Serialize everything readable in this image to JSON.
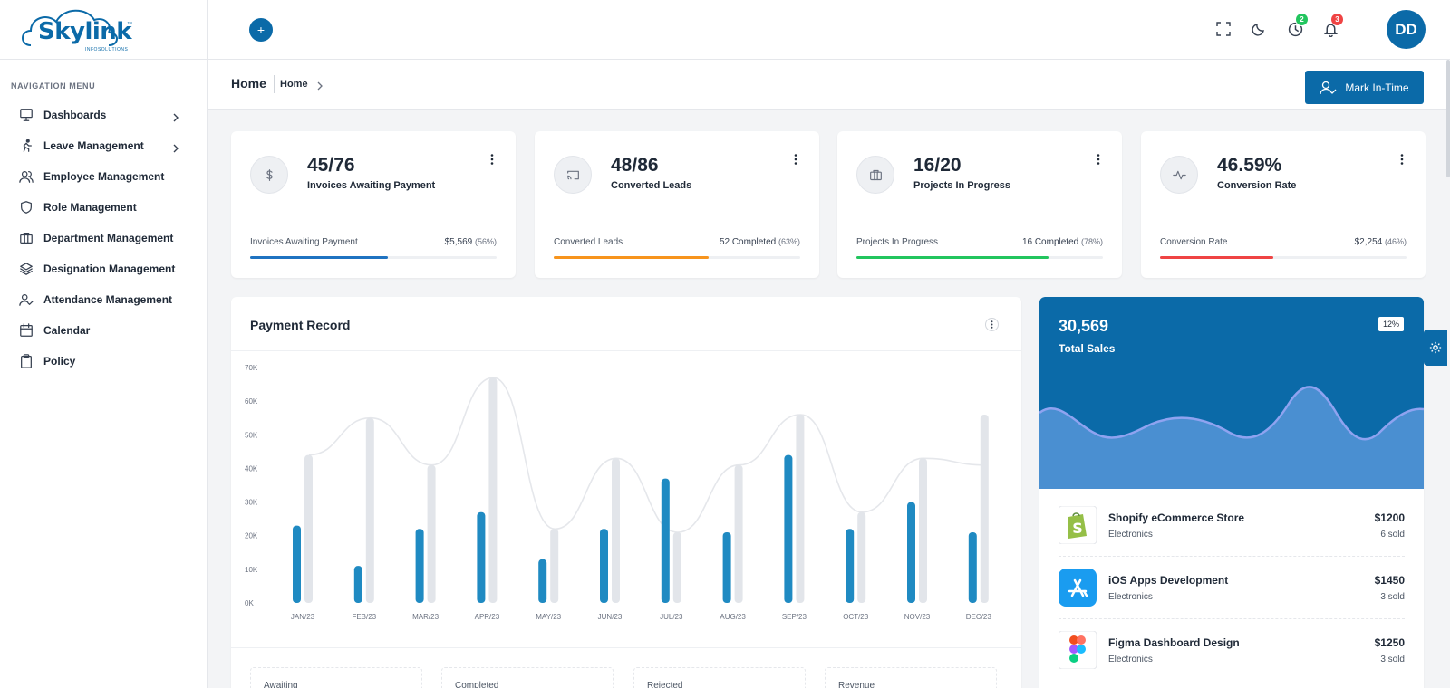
{
  "brand": {
    "name": "Skylink",
    "sub": "INFOSOLUTIONS",
    "tm": "™"
  },
  "sidebar": {
    "title": "NAVIGATION MENU",
    "items": [
      {
        "label": "Dashboards",
        "icon": "monitor-icon",
        "has_children": true
      },
      {
        "label": "Leave Management",
        "icon": "runner-icon",
        "has_children": true
      },
      {
        "label": "Employee Management",
        "icon": "users-icon",
        "has_children": false
      },
      {
        "label": "Role Management",
        "icon": "shield-icon",
        "has_children": false
      },
      {
        "label": "Department Management",
        "icon": "briefcase-icon",
        "has_children": false
      },
      {
        "label": "Designation Management",
        "icon": "layers-icon",
        "has_children": false
      },
      {
        "label": "Attendance Management",
        "icon": "user-check-icon",
        "has_children": false
      },
      {
        "label": "Calendar",
        "icon": "calendar-icon",
        "has_children": false
      },
      {
        "label": "Policy",
        "icon": "clipboard-icon",
        "has_children": false
      }
    ]
  },
  "topbar": {
    "history_badge": "2",
    "notification_badge": "3",
    "avatar_initials": "DD",
    "colors": {
      "accent": "#0b6aa8",
      "green": "#22c55e",
      "red": "#ef4444"
    }
  },
  "pagehead": {
    "title": "Home",
    "crumb": "Home",
    "button": "Mark In-Time"
  },
  "stats": [
    {
      "value": "45/76",
      "label": "Invoices Awaiting Payment",
      "foot_label": "Invoices Awaiting Payment",
      "foot_value": "$5,569",
      "foot_pct": "(56%)",
      "progress": 56,
      "color": "#1f73c1",
      "icon": "dollar-icon"
    },
    {
      "value": "48/86",
      "label": "Converted Leads",
      "foot_label": "Converted Leads",
      "foot_value": "52 Completed",
      "foot_pct": "(63%)",
      "progress": 63,
      "color": "#f7941d",
      "icon": "cast-icon"
    },
    {
      "value": "16/20",
      "label": "Projects In Progress",
      "foot_label": "Projects In Progress",
      "foot_value": "16 Completed",
      "foot_pct": "(78%)",
      "progress": 78,
      "color": "#22c55e",
      "icon": "briefcase-icon"
    },
    {
      "value": "46.59%",
      "label": "Conversion Rate",
      "foot_label": "Conversion Rate",
      "foot_value": "$2,254",
      "foot_pct": "(46%)",
      "progress": 46,
      "color": "#ef4444",
      "icon": "activity-icon"
    }
  ],
  "payment": {
    "title": "Payment Record",
    "summary_labels": [
      "Awaiting",
      "Completed",
      "Rejected",
      "Revenue"
    ]
  },
  "chart_data": {
    "type": "bar",
    "title": "Payment Record",
    "categories": [
      "JAN/23",
      "FEB/23",
      "MAR/23",
      "APR/23",
      "MAY/23",
      "JUN/23",
      "JUL/23",
      "AUG/23",
      "SEP/23",
      "OCT/23",
      "NOV/23",
      "DEC/23"
    ],
    "y_ticks": [
      "0K",
      "10K",
      "20K",
      "30K",
      "40K",
      "50K",
      "60K",
      "70K"
    ],
    "ylim": [
      0,
      70000
    ],
    "series": [
      {
        "values": [
          23000,
          11000,
          22000,
          27000,
          13000,
          22000,
          37000,
          21000,
          44000,
          22000,
          30000,
          21000
        ],
        "color": "#1f8ac2"
      },
      {
        "values": [
          44000,
          55000,
          41000,
          67000,
          22000,
          43000,
          21000,
          41000,
          56000,
          27000,
          43000,
          56000
        ],
        "color": "#e2e5ea"
      }
    ],
    "line": {
      "values": [
        44000,
        55000,
        41000,
        67000,
        22000,
        43000,
        21000,
        41000,
        56000,
        27000,
        43000,
        41000
      ],
      "color": "#e5e7eb"
    },
    "grid": false
  },
  "sales": {
    "value": "30,569",
    "label": "Total Sales",
    "badge": "12%",
    "products": [
      {
        "name": "Shopify eCommerce Store",
        "category": "Electronics",
        "price": "$1200",
        "sold": "6 sold",
        "icon": "shopify-icon"
      },
      {
        "name": "iOS Apps Development",
        "category": "Electronics",
        "price": "$1450",
        "sold": "3 sold",
        "icon": "appstore-icon"
      },
      {
        "name": "Figma Dashboard Design",
        "category": "Electronics",
        "price": "$1250",
        "sold": "3 sold",
        "icon": "figma-icon"
      }
    ]
  }
}
